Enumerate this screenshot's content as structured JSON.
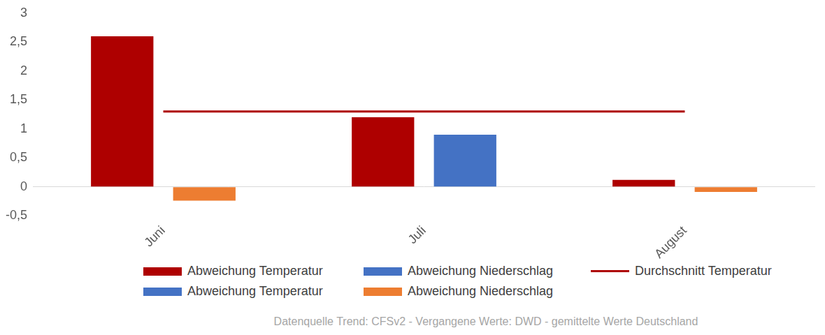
{
  "chart_data": {
    "type": "bar",
    "categories": [
      "Juni",
      "Juli",
      "August"
    ],
    "series": [
      {
        "name": "Abweichung Temperatur",
        "color": "#ae0000",
        "type": "bar",
        "values": [
          2.6,
          1.2,
          0.12
        ]
      },
      {
        "name": "Abweichung Niederschlag",
        "color": "#4472c4",
        "type": "bar",
        "values": [
          null,
          0.9,
          null
        ]
      },
      {
        "name": "Durchschnitt Temperatur",
        "color": "#ae0000",
        "type": "line",
        "values": [
          1.3,
          1.3,
          1.3
        ]
      },
      {
        "name": "Abweichung Temperatur",
        "color": "#4472c4",
        "type": "bar",
        "values": [
          null,
          null,
          null
        ]
      },
      {
        "name": "Abweichung Niederschlag",
        "color": "#ed7d31",
        "type": "bar",
        "values": [
          -0.24,
          null,
          -0.09
        ]
      }
    ],
    "ylim": [
      -0.5,
      3
    ],
    "yticks": [
      {
        "value": -0.5,
        "label": "-0,5"
      },
      0,
      {
        "value": 0.5,
        "label": "0,5"
      },
      1,
      {
        "value": 1.5,
        "label": "1,5"
      },
      2,
      {
        "value": 2.5,
        "label": "2,5"
      },
      3
    ],
    "grid": false,
    "legend": "bottom",
    "annotations": [
      "Datenquelle Trend: CFSv2 - Vergangene Werte: DWD - gemittelte Werte Deutschland"
    ]
  }
}
